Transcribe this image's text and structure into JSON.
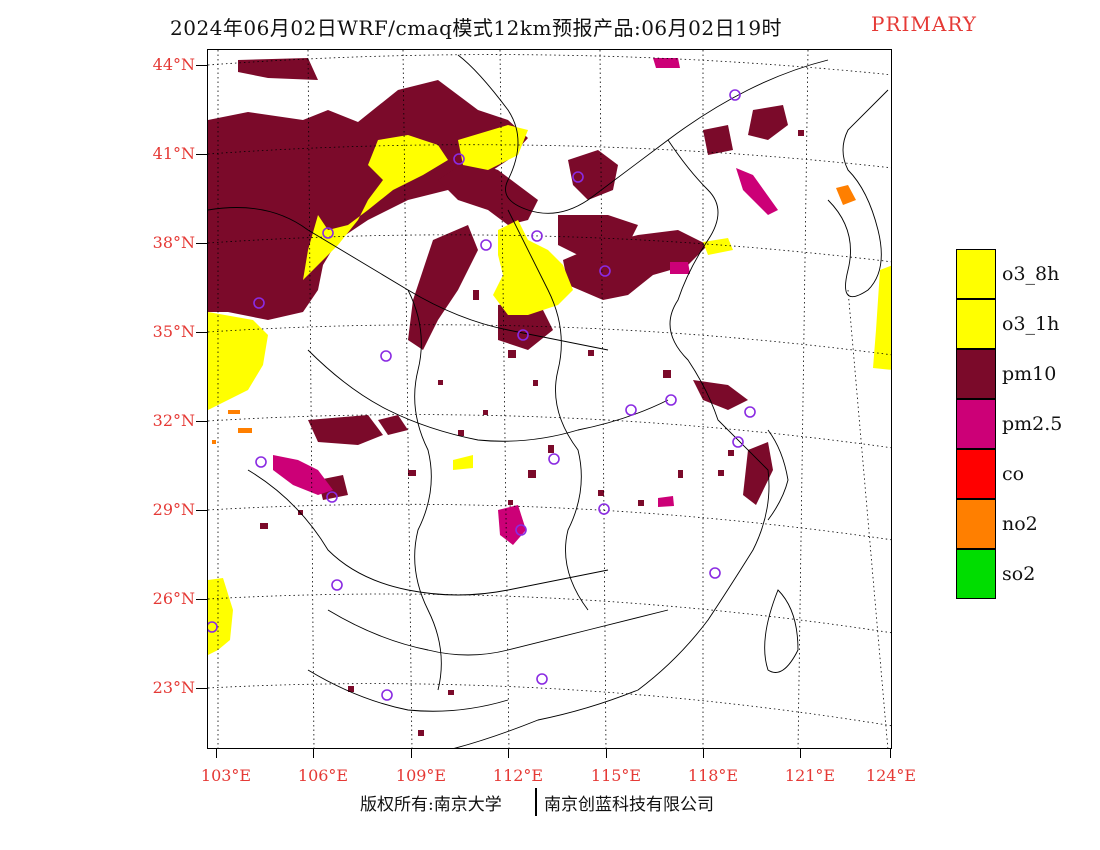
{
  "title": {
    "main": "2024年06月02日WRF/cmaq模式12km预报产品:06月02日19时",
    "tag": "PRIMARY"
  },
  "axes": {
    "lat_labels": [
      "44°N",
      "41°N",
      "38°N",
      "35°N",
      "32°N",
      "29°N",
      "26°N",
      "23°N"
    ],
    "lon_labels": [
      "103°E",
      "106°E",
      "109°E",
      "112°E",
      "115°E",
      "118°E",
      "121°E",
      "124°E"
    ],
    "label_color": "#e53935"
  },
  "legend": [
    {
      "label": "o3_8h",
      "color": "#ffff00"
    },
    {
      "label": "o3_1h",
      "color": "#ffff00"
    },
    {
      "label": "pm10",
      "color": "#7b0a2a"
    },
    {
      "label": "pm2.5",
      "color": "#cc0077"
    },
    {
      "label": "co",
      "color": "#ff0000"
    },
    {
      "label": "no2",
      "color": "#ff7f00"
    },
    {
      "label": "so2",
      "color": "#00dd00"
    }
  ],
  "footer": {
    "left": "版权所有:南京大学",
    "right": "南京创蓝科技有限公司"
  },
  "colors": {
    "pm10": "#7b0a2a",
    "pm25": "#cc0077",
    "o3": "#ffff00",
    "no2": "#ff7f00",
    "site_marker": "#8a2be2"
  },
  "icons": [
    "monitoring-site-circle-icon"
  ]
}
